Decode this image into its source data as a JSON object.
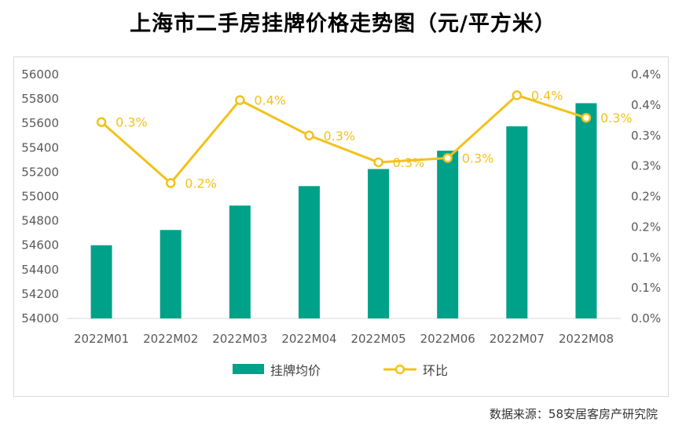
{
  "title": "上海市二手房挂牌价格走势图（元/平方米）",
  "source": "数据来源：58安居客房产研究院",
  "colors": {
    "bar": "#00a189",
    "line": "#f2c21b",
    "marker_fill": "#ffffff",
    "axis_text": "#595959"
  },
  "chart_data": {
    "type": "bar+line",
    "title": "上海市二手房挂牌价格走势图（元/平方米）",
    "categories": [
      "2022M01",
      "2022M02",
      "2022M03",
      "2022M04",
      "2022M05",
      "2022M06",
      "2022M07",
      "2022M08"
    ],
    "series": [
      {
        "name": "挂牌均价",
        "type": "bar",
        "axis": "left",
        "values": [
          54600,
          54725,
          54925,
          55085,
          55225,
          55375,
          55575,
          55765
        ]
      },
      {
        "name": "环比",
        "type": "line",
        "axis": "right",
        "values": [
          0.00322,
          0.00222,
          0.00358,
          0.003,
          0.00256,
          0.00263,
          0.00366,
          0.00329
        ],
        "labels": [
          "0.3%",
          "0.2%",
          "0.4%",
          "0.3%",
          "0.3%",
          "0.3%",
          "0.4%",
          "0.3%"
        ]
      }
    ],
    "y_left": {
      "min": 54000,
      "max": 56000,
      "step": 200,
      "ticks": [
        "54000",
        "54200",
        "54400",
        "54600",
        "54800",
        "55000",
        "55200",
        "55400",
        "55600",
        "55800",
        "56000"
      ]
    },
    "y_right": {
      "min": 0,
      "max": 0.004,
      "step": 0.0005,
      "ticks": [
        "0.0%",
        "0.1%",
        "0.1%",
        "0.2%",
        "0.2%",
        "0.3%",
        "0.3%",
        "0.4%",
        "0.4%"
      ]
    },
    "legend": {
      "position": "bottom",
      "items": [
        "挂牌均价",
        "环比"
      ]
    }
  }
}
